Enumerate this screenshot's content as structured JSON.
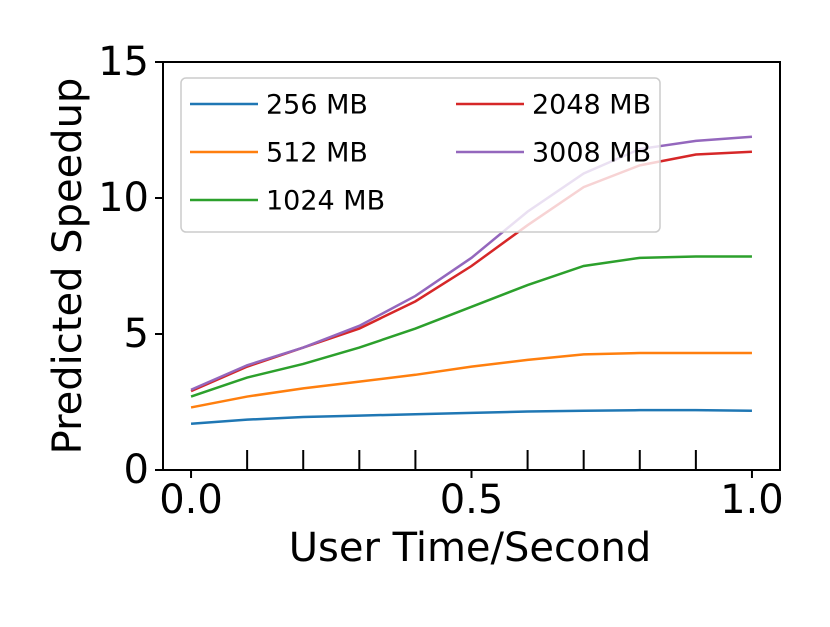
{
  "chart_data": {
    "type": "line",
    "x_label": "User Time/Second",
    "y_label": "Predicted Speedup",
    "x": [
      0.0,
      0.1,
      0.2,
      0.3,
      0.4,
      0.5,
      0.6,
      0.7,
      0.8,
      0.9,
      1.0
    ],
    "series": [
      {
        "name": "256 MB",
        "color": "#1f77b4",
        "values": [
          1.7,
          1.85,
          1.95,
          2.0,
          2.05,
          2.1,
          2.15,
          2.18,
          2.2,
          2.2,
          2.18
        ]
      },
      {
        "name": "512 MB",
        "color": "#ff7f0e",
        "values": [
          2.3,
          2.7,
          3.0,
          3.25,
          3.5,
          3.8,
          4.05,
          4.25,
          4.3,
          4.3,
          4.3
        ]
      },
      {
        "name": "1024 MB",
        "color": "#2ca02c",
        "values": [
          2.7,
          3.4,
          3.9,
          4.5,
          5.2,
          6.0,
          6.8,
          7.5,
          7.8,
          7.85,
          7.85
        ]
      },
      {
        "name": "2048 MB",
        "color": "#d62728",
        "values": [
          2.9,
          3.8,
          4.5,
          5.2,
          6.2,
          7.5,
          9.0,
          10.4,
          11.2,
          11.6,
          11.7
        ]
      },
      {
        "name": "3008 MB",
        "color": "#9467bd",
        "values": [
          2.95,
          3.85,
          4.5,
          5.3,
          6.4,
          7.8,
          9.5,
          10.9,
          11.8,
          12.1,
          12.25
        ]
      }
    ],
    "xlim": [
      -0.05,
      1.05
    ],
    "ylim": [
      0,
      15
    ],
    "xticks": [
      {
        "value": 0,
        "label": "0.0"
      },
      {
        "value": 0.5,
        "label": "0.5"
      },
      {
        "value": 1,
        "label": "1.0"
      }
    ],
    "xminor_ticks": [
      0.1,
      0.2,
      0.3,
      0.4,
      0.6,
      0.7,
      0.8,
      0.9
    ],
    "yticks": [
      0,
      5,
      10,
      15
    ],
    "legend": "upper left",
    "grid": false
  }
}
